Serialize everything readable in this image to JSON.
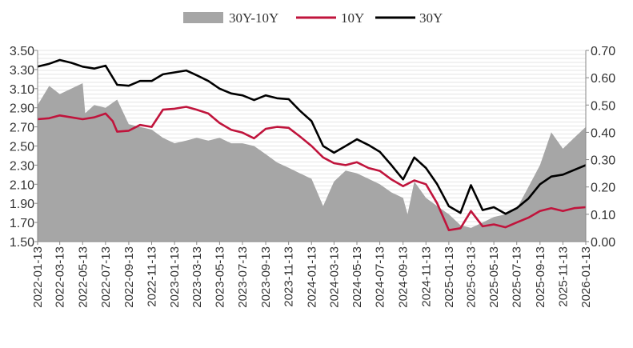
{
  "chart_data": {
    "type": "line",
    "title": "",
    "xlabel": "",
    "ylabel": "",
    "legend_position": "top-center",
    "grid": true,
    "ylim": [
      1.5,
      3.5
    ],
    "y2lim": [
      0.0,
      0.7
    ],
    "yticks": [
      "3.50",
      "3.30",
      "3.10",
      "2.90",
      "2.70",
      "2.50",
      "2.30",
      "2.10",
      "1.90",
      "1.70",
      "1.50"
    ],
    "y2ticks": [
      "0.70",
      "0.60",
      "0.50",
      "0.40",
      "0.30",
      "0.20",
      "0.10",
      "0.00"
    ],
    "xticks": [
      "2022-01-13",
      "2022-03-13",
      "2022-05-13",
      "2022-07-13",
      "2022-09-13",
      "2022-11-13",
      "2023-01-13",
      "2023-03-13",
      "2023-05-13",
      "2023-07-13",
      "2023-09-13",
      "2023-11-13",
      "2024-01-13",
      "2024-03-13",
      "2024-05-13",
      "2024-07-13",
      "2024-09-13",
      "2024-11-13",
      "2025-01-13",
      "2025-03-13",
      "2025-05-13",
      "2025-07-13",
      "2025-09-13",
      "2025-11-13",
      "2026-01-13"
    ],
    "series": [
      {
        "name": "30Y-10Y",
        "type": "area",
        "axis": "right",
        "color": "#a6a6a6",
        "points": [
          [
            "2022-01-13",
            0.5
          ],
          [
            "2022-02-13",
            0.57
          ],
          [
            "2022-03-13",
            0.54
          ],
          [
            "2022-04-13",
            0.56
          ],
          [
            "2022-05-13",
            0.58
          ],
          [
            "2022-05-20",
            0.47
          ],
          [
            "2022-06-13",
            0.5
          ],
          [
            "2022-07-13",
            0.49
          ],
          [
            "2022-08-13",
            0.52
          ],
          [
            "2022-09-13",
            0.43
          ],
          [
            "2022-10-13",
            0.42
          ],
          [
            "2022-11-13",
            0.41
          ],
          [
            "2022-12-13",
            0.38
          ],
          [
            "2023-01-13",
            0.36
          ],
          [
            "2023-02-13",
            0.37
          ],
          [
            "2023-03-13",
            0.38
          ],
          [
            "2023-04-13",
            0.37
          ],
          [
            "2023-05-13",
            0.38
          ],
          [
            "2023-06-13",
            0.36
          ],
          [
            "2023-07-13",
            0.36
          ],
          [
            "2023-08-13",
            0.35
          ],
          [
            "2023-09-13",
            0.32
          ],
          [
            "2023-10-13",
            0.29
          ],
          [
            "2023-11-13",
            0.27
          ],
          [
            "2023-12-13",
            0.25
          ],
          [
            "2024-01-13",
            0.23
          ],
          [
            "2024-02-13",
            0.13
          ],
          [
            "2024-03-13",
            0.22
          ],
          [
            "2024-04-13",
            0.26
          ],
          [
            "2024-05-13",
            0.25
          ],
          [
            "2024-06-13",
            0.23
          ],
          [
            "2024-07-13",
            0.21
          ],
          [
            "2024-08-13",
            0.18
          ],
          [
            "2024-09-13",
            0.16
          ],
          [
            "2024-09-25",
            0.1
          ],
          [
            "2024-10-13",
            0.22
          ],
          [
            "2024-11-13",
            0.16
          ],
          [
            "2024-12-13",
            0.13
          ],
          [
            "2025-01-13",
            0.1
          ],
          [
            "2025-02-13",
            0.06
          ],
          [
            "2025-03-13",
            0.05
          ],
          [
            "2025-04-13",
            0.07
          ],
          [
            "2025-05-13",
            0.09
          ],
          [
            "2025-06-13",
            0.1
          ],
          [
            "2025-07-13",
            0.12
          ],
          [
            "2025-08-13",
            0.2
          ],
          [
            "2025-09-13",
            0.28
          ],
          [
            "2025-10-13",
            0.4
          ],
          [
            "2025-11-13",
            0.34
          ],
          [
            "2025-12-13",
            0.38
          ],
          [
            "2026-01-13",
            0.42
          ]
        ]
      },
      {
        "name": "10Y",
        "type": "line",
        "axis": "left",
        "color": "#c0143c",
        "points": [
          [
            "2022-01-13",
            2.78
          ],
          [
            "2022-02-13",
            2.79
          ],
          [
            "2022-03-13",
            2.82
          ],
          [
            "2022-04-13",
            2.8
          ],
          [
            "2022-05-13",
            2.78
          ],
          [
            "2022-06-13",
            2.8
          ],
          [
            "2022-07-13",
            2.84
          ],
          [
            "2022-08-01",
            2.76
          ],
          [
            "2022-08-13",
            2.65
          ],
          [
            "2022-09-13",
            2.66
          ],
          [
            "2022-10-13",
            2.72
          ],
          [
            "2022-11-13",
            2.7
          ],
          [
            "2022-12-13",
            2.88
          ],
          [
            "2023-01-13",
            2.89
          ],
          [
            "2023-02-13",
            2.91
          ],
          [
            "2023-03-13",
            2.88
          ],
          [
            "2023-04-13",
            2.84
          ],
          [
            "2023-05-13",
            2.74
          ],
          [
            "2023-06-13",
            2.67
          ],
          [
            "2023-07-13",
            2.64
          ],
          [
            "2023-08-13",
            2.58
          ],
          [
            "2023-09-13",
            2.68
          ],
          [
            "2023-10-13",
            2.7
          ],
          [
            "2023-11-13",
            2.69
          ],
          [
            "2023-12-13",
            2.6
          ],
          [
            "2024-01-13",
            2.5
          ],
          [
            "2024-02-13",
            2.38
          ],
          [
            "2024-03-13",
            2.32
          ],
          [
            "2024-04-13",
            2.3
          ],
          [
            "2024-05-13",
            2.33
          ],
          [
            "2024-06-13",
            2.27
          ],
          [
            "2024-07-13",
            2.24
          ],
          [
            "2024-08-13",
            2.15
          ],
          [
            "2024-09-13",
            2.08
          ],
          [
            "2024-10-13",
            2.14
          ],
          [
            "2024-11-13",
            2.1
          ],
          [
            "2024-12-13",
            1.9
          ],
          [
            "2025-01-13",
            1.62
          ],
          [
            "2025-02-13",
            1.64
          ],
          [
            "2025-03-13",
            1.82
          ],
          [
            "2025-04-13",
            1.66
          ],
          [
            "2025-05-13",
            1.68
          ],
          [
            "2025-06-13",
            1.65
          ],
          [
            "2025-07-13",
            1.7
          ],
          [
            "2025-08-13",
            1.75
          ],
          [
            "2025-09-13",
            1.82
          ],
          [
            "2025-10-13",
            1.85
          ],
          [
            "2025-11-13",
            1.82
          ],
          [
            "2025-12-13",
            1.85
          ],
          [
            "2026-01-13",
            1.86
          ]
        ]
      },
      {
        "name": "30Y",
        "type": "line",
        "axis": "left",
        "color": "#000000",
        "points": [
          [
            "2022-01-13",
            3.33
          ],
          [
            "2022-02-13",
            3.36
          ],
          [
            "2022-03-13",
            3.4
          ],
          [
            "2022-04-13",
            3.37
          ],
          [
            "2022-05-13",
            3.33
          ],
          [
            "2022-06-13",
            3.31
          ],
          [
            "2022-07-13",
            3.34
          ],
          [
            "2022-08-13",
            3.14
          ],
          [
            "2022-09-13",
            3.13
          ],
          [
            "2022-10-13",
            3.18
          ],
          [
            "2022-11-13",
            3.18
          ],
          [
            "2022-12-13",
            3.25
          ],
          [
            "2023-01-13",
            3.27
          ],
          [
            "2023-02-13",
            3.29
          ],
          [
            "2023-03-13",
            3.24
          ],
          [
            "2023-04-13",
            3.18
          ],
          [
            "2023-05-13",
            3.1
          ],
          [
            "2023-06-13",
            3.05
          ],
          [
            "2023-07-13",
            3.03
          ],
          [
            "2023-08-13",
            2.98
          ],
          [
            "2023-09-13",
            3.03
          ],
          [
            "2023-10-13",
            3.0
          ],
          [
            "2023-11-13",
            2.99
          ],
          [
            "2023-12-13",
            2.87
          ],
          [
            "2024-01-13",
            2.76
          ],
          [
            "2024-02-13",
            2.5
          ],
          [
            "2024-03-13",
            2.43
          ],
          [
            "2024-04-13",
            2.5
          ],
          [
            "2024-05-13",
            2.57
          ],
          [
            "2024-06-13",
            2.51
          ],
          [
            "2024-07-13",
            2.44
          ],
          [
            "2024-08-13",
            2.3
          ],
          [
            "2024-09-13",
            2.15
          ],
          [
            "2024-10-13",
            2.38
          ],
          [
            "2024-11-13",
            2.27
          ],
          [
            "2024-12-13",
            2.1
          ],
          [
            "2025-01-13",
            1.87
          ],
          [
            "2025-02-13",
            1.8
          ],
          [
            "2025-03-13",
            2.09
          ],
          [
            "2025-04-13",
            1.83
          ],
          [
            "2025-05-13",
            1.86
          ],
          [
            "2025-06-13",
            1.79
          ],
          [
            "2025-07-13",
            1.85
          ],
          [
            "2025-08-13",
            1.95
          ],
          [
            "2025-09-13",
            2.1
          ],
          [
            "2025-10-13",
            2.18
          ],
          [
            "2025-11-13",
            2.2
          ],
          [
            "2025-12-13",
            2.25
          ],
          [
            "2026-01-13",
            2.3
          ]
        ]
      }
    ]
  }
}
